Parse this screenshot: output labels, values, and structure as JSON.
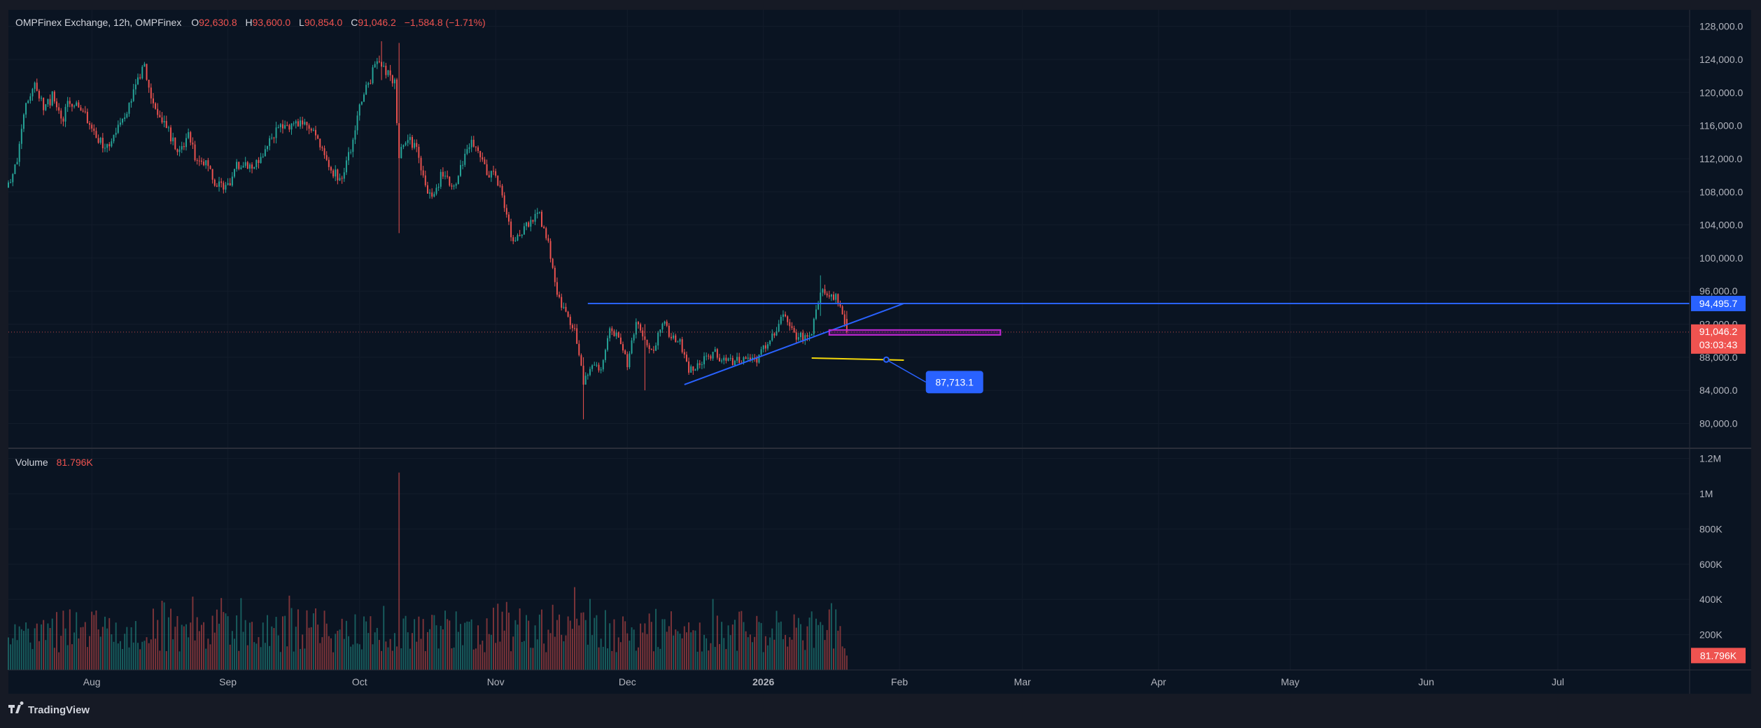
{
  "legend": {
    "symbol": "OMPFinex Exchange, 12h, OMPFinex",
    "open_key": "O",
    "open": "92,630.8",
    "high_key": "H",
    "high": "93,600.0",
    "low_key": "L",
    "low": "90,854.0",
    "close_key": "C",
    "close": "91,046.2",
    "change": "−1,584.8 (−1.71%)"
  },
  "volume_legend": {
    "label": "Volume",
    "value": "81.796K"
  },
  "branding": {
    "label": "TradingView"
  },
  "colors": {
    "background": "#0a1422",
    "up": "#26a69a",
    "down": "#ef5350",
    "trendline": "#2962ff",
    "rectangle": "#c026d3",
    "yellow_line": "#f5d90a",
    "label_blue": "#2962ff"
  },
  "chart_data": [
    {
      "type": "candlestick",
      "pane": "price",
      "interval": "12h",
      "x_start": "2025-07-13",
      "x_end": "2026-07-31",
      "data_start": "2025-07-13",
      "data_end": "2026-01-20",
      "ylim": [
        77000,
        130000
      ],
      "y_ticks": [
        "128,000.0",
        "124,000.0",
        "120,000.0",
        "116,000.0",
        "112,000.0",
        "108,000.0",
        "104,000.0",
        "100,000.0",
        "96,000.0",
        "92,000.0",
        "88,000.0",
        "84,000.0",
        "80,000.0"
      ],
      "x_ticks": [
        {
          "label": "Aug",
          "date": "2025-08-01"
        },
        {
          "label": "Sep",
          "date": "2025-09-01"
        },
        {
          "label": "Oct",
          "date": "2025-10-01"
        },
        {
          "label": "Nov",
          "date": "2025-11-01"
        },
        {
          "label": "Dec",
          "date": "2025-12-01"
        },
        {
          "label": "2026",
          "date": "2026-01-01"
        },
        {
          "label": "Feb",
          "date": "2026-02-01"
        },
        {
          "label": "Mar",
          "date": "2026-03-01"
        },
        {
          "label": "Apr",
          "date": "2026-04-01"
        },
        {
          "label": "May",
          "date": "2026-05-01"
        },
        {
          "label": "Jun",
          "date": "2026-06-01"
        },
        {
          "label": "Jul",
          "date": "2026-07-01"
        }
      ],
      "path": [
        [
          "2025-07-13",
          108500
        ],
        [
          "2025-07-15",
          111500
        ],
        [
          "2025-07-17",
          118500
        ],
        [
          "2025-07-19",
          121000
        ],
        [
          "2025-07-21",
          118000
        ],
        [
          "2025-07-23",
          119500
        ],
        [
          "2025-07-25",
          116500
        ],
        [
          "2025-07-27",
          119000
        ],
        [
          "2025-07-29",
          118000
        ],
        [
          "2025-08-01",
          116000
        ],
        [
          "2025-08-03",
          114000
        ],
        [
          "2025-08-05",
          113500
        ],
        [
          "2025-08-07",
          116500
        ],
        [
          "2025-08-09",
          118000
        ],
        [
          "2025-08-11",
          121000
        ],
        [
          "2025-08-13",
          123500
        ],
        [
          "2025-08-15",
          118000
        ],
        [
          "2025-08-17",
          117000
        ],
        [
          "2025-08-19",
          114500
        ],
        [
          "2025-08-21",
          112500
        ],
        [
          "2025-08-23",
          115500
        ],
        [
          "2025-08-25",
          111500
        ],
        [
          "2025-08-27",
          112000
        ],
        [
          "2025-08-29",
          109000
        ],
        [
          "2025-09-01",
          108500
        ],
        [
          "2025-09-03",
          111000
        ],
        [
          "2025-09-05",
          111500
        ],
        [
          "2025-09-07",
          111000
        ],
        [
          "2025-09-09",
          112000
        ],
        [
          "2025-09-11",
          114500
        ],
        [
          "2025-09-13",
          116000
        ],
        [
          "2025-09-15",
          115500
        ],
        [
          "2025-09-17",
          116500
        ],
        [
          "2025-09-19",
          116000
        ],
        [
          "2025-09-21",
          115500
        ],
        [
          "2025-09-23",
          112500
        ],
        [
          "2025-09-25",
          110500
        ],
        [
          "2025-09-27",
          109500
        ],
        [
          "2025-09-29",
          113500
        ],
        [
          "2025-10-01",
          118000
        ],
        [
          "2025-10-03",
          121000
        ],
        [
          "2025-10-05",
          124000
        ],
        [
          "2025-10-07",
          122500
        ],
        [
          "2025-10-09",
          121000
        ],
        [
          "2025-10-10",
          112500
        ],
        [
          "2025-10-12",
          114500
        ],
        [
          "2025-10-14",
          113000
        ],
        [
          "2025-10-16",
          108500
        ],
        [
          "2025-10-18",
          107500
        ],
        [
          "2025-10-20",
          110500
        ],
        [
          "2025-10-22",
          108000
        ],
        [
          "2025-10-24",
          111000
        ],
        [
          "2025-10-26",
          114000
        ],
        [
          "2025-10-28",
          113500
        ],
        [
          "2025-10-30",
          110000
        ],
        [
          "2025-11-01",
          110000
        ],
        [
          "2025-11-03",
          106500
        ],
        [
          "2025-11-05",
          101500
        ],
        [
          "2025-11-07",
          103000
        ],
        [
          "2025-11-09",
          104500
        ],
        [
          "2025-11-11",
          105000
        ],
        [
          "2025-11-13",
          101500
        ],
        [
          "2025-11-15",
          96000
        ],
        [
          "2025-11-17",
          93000
        ],
        [
          "2025-11-19",
          91000
        ],
        [
          "2025-11-21",
          85000
        ],
        [
          "2025-11-23",
          86500
        ],
        [
          "2025-11-25",
          87000
        ],
        [
          "2025-11-27",
          91000
        ],
        [
          "2025-11-29",
          90500
        ],
        [
          "2025-12-01",
          87000
        ],
        [
          "2025-12-03",
          92000
        ],
        [
          "2025-12-05",
          90000
        ],
        [
          "2025-12-07",
          89000
        ],
        [
          "2025-12-09",
          92500
        ],
        [
          "2025-12-11",
          90500
        ],
        [
          "2025-12-13",
          90000
        ],
        [
          "2025-12-15",
          86500
        ],
        [
          "2025-12-17",
          87000
        ],
        [
          "2025-12-19",
          88000
        ],
        [
          "2025-12-21",
          88500
        ],
        [
          "2025-12-23",
          87500
        ],
        [
          "2025-12-25",
          87500
        ],
        [
          "2025-12-27",
          87800
        ],
        [
          "2025-12-29",
          87500
        ],
        [
          "2025-12-31",
          88000
        ],
        [
          "2026-01-02",
          90000
        ],
        [
          "2026-01-04",
          91500
        ],
        [
          "2026-01-06",
          93500
        ],
        [
          "2026-01-08",
          90500
        ],
        [
          "2026-01-10",
          90500
        ],
        [
          "2026-01-12",
          91000
        ],
        [
          "2026-01-14",
          96000
        ],
        [
          "2026-01-16",
          95500
        ],
        [
          "2026-01-18",
          95000
        ],
        [
          "2026-01-20",
          91046
        ]
      ],
      "wicks": [
        [
          "2025-10-10",
          103000,
          126000
        ],
        [
          "2025-10-06",
          121500,
          126200
        ],
        [
          "2025-11-21",
          80500,
          88000
        ],
        [
          "2025-12-05",
          84000,
          92000
        ],
        [
          "2026-01-14",
          93000,
          97900
        ]
      ],
      "price_lines": [
        {
          "y": 94495.7,
          "label": "94,495.7",
          "from": "2025-11-22",
          "to": "2026-07-31"
        },
        {
          "y": 91046.2,
          "label": "91,046.2",
          "countdown": "03:03:43",
          "dotted": true
        }
      ],
      "trendlines": [
        {
          "x1": "2025-12-14",
          "y1": 84700,
          "x2": "2026-02-02",
          "y2": 94500
        }
      ],
      "yellow_line": {
        "x1": "2026-01-12",
        "y1": 87900,
        "x2": "2026-02-02",
        "y2": 87650
      },
      "rectangle": {
        "x1": "2026-01-16",
        "x2": "2026-02-24",
        "y1": 90700,
        "y2": 91300
      },
      "callout": {
        "label": "87,713.1",
        "anchor": "2026-01-29",
        "anchor_y": 87713.1,
        "box_x": "2026-02-07",
        "box_y": 85000
      }
    },
    {
      "type": "bar",
      "pane": "volume",
      "ylim": [
        0,
        1250000
      ],
      "y_ticks": [
        {
          "label": "1.2M",
          "v": 1200000
        },
        {
          "label": "1M",
          "v": 1000000
        },
        {
          "label": "800K",
          "v": 800000
        },
        {
          "label": "600K",
          "v": 600000
        },
        {
          "label": "400K",
          "v": 400000
        },
        {
          "label": "200K",
          "v": 200000
        }
      ],
      "typical_range": [
        100000,
        350000
      ],
      "spikes": [
        [
          "2025-10-10",
          1120000
        ],
        [
          "2025-11-19",
          470000
        ],
        [
          "2025-11-14",
          370000
        ]
      ],
      "last_value": 81796,
      "last_value_label": "81.796K"
    }
  ]
}
